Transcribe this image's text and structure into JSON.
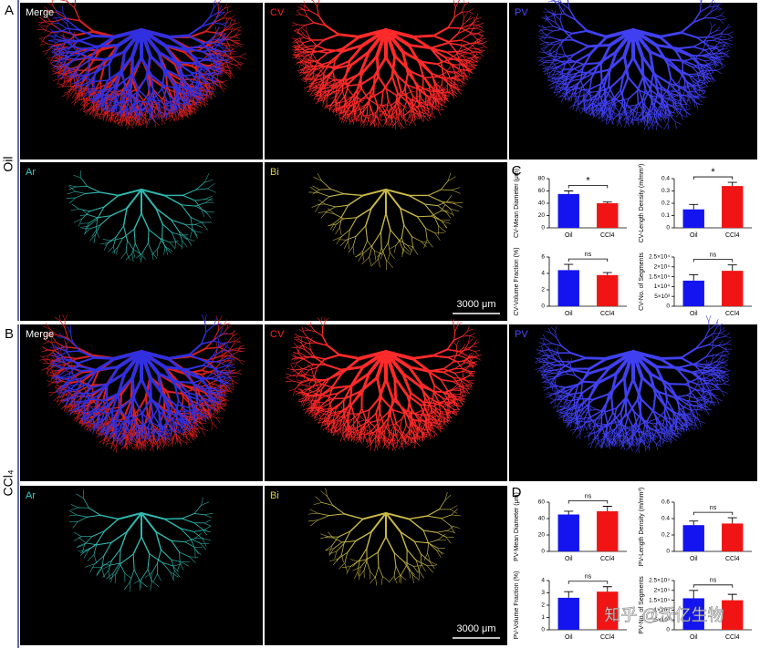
{
  "labels": {
    "panel_a": "A",
    "panel_b": "B",
    "panel_c": "C",
    "panel_d": "D",
    "group_oil": "Oil",
    "group_ccl4": "CCl₄"
  },
  "images": [
    {
      "label": "Merge"
    },
    {
      "label": "CV"
    },
    {
      "label": "PV"
    },
    {
      "label": "Ar"
    },
    {
      "label": "Bi"
    },
    {
      "label": "Merge"
    },
    {
      "label": "CV"
    },
    {
      "label": "PV"
    },
    {
      "label": "Ar"
    },
    {
      "label": "Bi"
    }
  ],
  "scale_bars": [
    "3000 μm",
    "3000 μm"
  ],
  "watermark": "知乎 @沃亿生物",
  "chart_data": [
    {
      "type": "bar",
      "ylabel": "CV-Mean Diameter (μm)",
      "categories": [
        "Oil",
        "CCl4"
      ],
      "values": [
        55,
        40
      ],
      "errors": [
        5,
        2
      ],
      "colors": [
        "#1414f0",
        "#f01414"
      ],
      "significance": "*",
      "ylim": [
        0,
        80
      ],
      "yticks": [
        0,
        20,
        40,
        60,
        80
      ]
    },
    {
      "type": "bar",
      "ylabel": "CV-Length Density (m/mm³)",
      "categories": [
        "Oil",
        "CCl4"
      ],
      "values": [
        0.15,
        0.34
      ],
      "errors": [
        0.04,
        0.03
      ],
      "colors": [
        "#1414f0",
        "#f01414"
      ],
      "significance": "*",
      "ylim": [
        0,
        0.4
      ],
      "yticks": [
        0,
        0.1,
        0.2,
        0.3,
        0.4
      ]
    },
    {
      "type": "bar",
      "ylabel": "CV-Volume Fraction (%)",
      "categories": [
        "Oil",
        "CCl4"
      ],
      "values": [
        4.4,
        3.8
      ],
      "errors": [
        0.7,
        0.3
      ],
      "colors": [
        "#1414f0",
        "#f01414"
      ],
      "significance": "ns",
      "ylim": [
        0,
        6
      ],
      "yticks": [
        0,
        2,
        4,
        6
      ]
    },
    {
      "type": "bar",
      "ylabel": "CV-No. of Segments",
      "categories": [
        "Oil",
        "CCl4"
      ],
      "values": [
        13000,
        18000
      ],
      "errors": [
        3000,
        3000
      ],
      "colors": [
        "#1414f0",
        "#f01414"
      ],
      "significance": "ns",
      "ylim": [
        0,
        25000
      ],
      "yticks": [
        0,
        {
          "value": 5000,
          "label": "5×10³"
        },
        {
          "value": 10000,
          "label": "1×10⁴"
        },
        {
          "value": 15000,
          "label": "1.5×10⁴"
        },
        {
          "value": 20000,
          "label": "2×10⁴"
        },
        {
          "value": 25000,
          "label": "2.5×10⁴"
        }
      ]
    },
    {
      "type": "bar",
      "ylabel": "PV-Mean Diameter (μm)",
      "categories": [
        "Oil",
        "CCl4"
      ],
      "values": [
        45,
        49
      ],
      "errors": [
        4,
        6
      ],
      "colors": [
        "#1414f0",
        "#f01414"
      ],
      "significance": "ns",
      "ylim": [
        0,
        60
      ],
      "yticks": [
        0,
        20,
        40,
        60
      ]
    },
    {
      "type": "bar",
      "ylabel": "PV-Length Density (m/mm³)",
      "categories": [
        "Oil",
        "CCl4"
      ],
      "values": [
        0.32,
        0.34
      ],
      "errors": [
        0.05,
        0.07
      ],
      "colors": [
        "#1414f0",
        "#f01414"
      ],
      "significance": "ns",
      "ylim": [
        0,
        0.6
      ],
      "yticks": [
        0,
        0.2,
        0.4,
        0.6
      ]
    },
    {
      "type": "bar",
      "ylabel": "PV-Volume Fraction (%)",
      "categories": [
        "Oil",
        "CCl4"
      ],
      "values": [
        2.6,
        3.1
      ],
      "errors": [
        0.5,
        0.4
      ],
      "colors": [
        "#1414f0",
        "#f01414"
      ],
      "significance": "ns",
      "ylim": [
        0,
        4
      ],
      "yticks": [
        0,
        1,
        2,
        3,
        4
      ]
    },
    {
      "type": "bar",
      "ylabel": "PV-No. of Segments",
      "categories": [
        "Oil",
        "CCl4"
      ],
      "values": [
        16000,
        15000
      ],
      "errors": [
        4000,
        3000
      ],
      "colors": [
        "#1414f0",
        "#f01414"
      ],
      "significance": "ns",
      "ylim": [
        0,
        25000
      ],
      "yticks": [
        0,
        {
          "value": 5000,
          "label": "5×10³"
        },
        {
          "value": 10000,
          "label": "1×10⁴"
        },
        {
          "value": 15000,
          "label": "1.5×10⁴"
        },
        {
          "value": 20000,
          "label": "2×10⁴"
        },
        {
          "value": 25000,
          "label": "2.5×10⁴"
        }
      ]
    }
  ]
}
